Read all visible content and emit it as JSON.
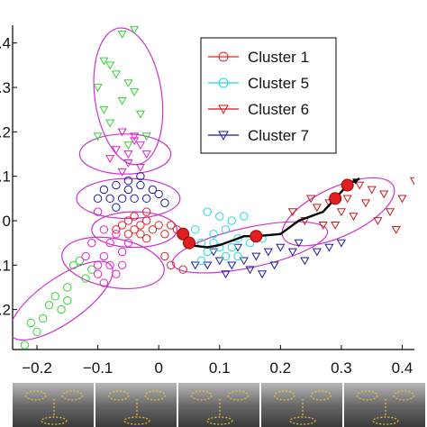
{
  "chart_data": {
    "type": "scatter",
    "title": "",
    "xlabel": "",
    "ylabel": "",
    "xlim": [
      -0.24,
      0.42
    ],
    "ylim": [
      -0.29,
      0.44
    ],
    "x_ticks": [
      -0.2,
      -0.1,
      0,
      0.1,
      0.2,
      0.3,
      0.4
    ],
    "x_tick_labels": [
      "−0.2",
      "−0.1",
      "0",
      "0.1",
      "0.2",
      "0.3",
      "0.4"
    ],
    "y_ticks": [
      0.4,
      0.3,
      0.2,
      0.1,
      0,
      -0.1,
      -0.2
    ],
    "y_tick_labels": [
      ".4",
      ".3",
      ".2",
      ".1",
      "0",
      ".1",
      ".2"
    ],
    "grid": false,
    "legend_position": "top-right",
    "legend": [
      {
        "label": "Cluster 1",
        "color": "#e02020",
        "marker": "circle"
      },
      {
        "label": "Cluster 5",
        "color": "#20d8e8",
        "marker": "circle"
      },
      {
        "label": "Cluster 6",
        "color": "#c81818",
        "marker": "triangle-down"
      },
      {
        "label": "Cluster 7",
        "color": "#1a1aa8",
        "marker": "triangle-down"
      }
    ],
    "colors": {
      "ellipse": "#cc33cc",
      "green": "#2fd62f",
      "magenta": "#e020d0",
      "red": "#e02020",
      "cyan": "#20d8e8",
      "darkred": "#c81818",
      "blue": "#1a1aa8",
      "path": "#000000"
    },
    "ellipses": [
      {
        "cx": -0.05,
        "cy": 0.28,
        "rx": 0.055,
        "ry": 0.155,
        "angle": 8
      },
      {
        "cx": -0.055,
        "cy": 0.15,
        "rx": 0.075,
        "ry": 0.045,
        "angle": 0
      },
      {
        "cx": -0.05,
        "cy": 0.05,
        "rx": 0.085,
        "ry": 0.045,
        "angle": 0
      },
      {
        "cx": -0.04,
        "cy": -0.02,
        "rx": 0.07,
        "ry": 0.04,
        "angle": 0
      },
      {
        "cx": -0.075,
        "cy": -0.095,
        "rx": 0.085,
        "ry": 0.055,
        "angle": -10
      },
      {
        "cx": -0.16,
        "cy": -0.18,
        "rx": 0.1,
        "ry": 0.05,
        "angle": 35
      },
      {
        "cx": 0.15,
        "cy": -0.06,
        "rx": 0.13,
        "ry": 0.045,
        "angle": 12
      },
      {
        "cx": 0.295,
        "cy": 0.02,
        "rx": 0.1,
        "ry": 0.055,
        "angle": 25
      }
    ],
    "path": [
      [
        0.04,
        -0.03
      ],
      [
        0.05,
        -0.055
      ],
      [
        0.08,
        -0.06
      ],
      [
        0.1,
        -0.055
      ],
      [
        0.12,
        -0.045
      ],
      [
        0.14,
        -0.035
      ],
      [
        0.16,
        -0.035
      ],
      [
        0.2,
        -0.03
      ],
      [
        0.23,
        0.0
      ],
      [
        0.27,
        0.02
      ],
      [
        0.29,
        0.05
      ],
      [
        0.31,
        0.08
      ],
      [
        0.33,
        0.095
      ]
    ],
    "path_nodes": [
      [
        0.04,
        -0.03
      ],
      [
        0.05,
        -0.05
      ],
      [
        0.16,
        -0.035
      ],
      [
        0.29,
        0.05
      ],
      [
        0.31,
        0.08
      ]
    ],
    "series": [
      {
        "key": "green",
        "marker": "triangle-down",
        "points": [
          [
            -0.06,
            0.42
          ],
          [
            -0.04,
            0.43
          ],
          [
            -0.09,
            0.36
          ],
          [
            -0.07,
            0.33
          ],
          [
            -0.08,
            0.35
          ],
          [
            -0.05,
            0.31
          ],
          [
            -0.1,
            0.3
          ],
          [
            -0.09,
            0.25
          ],
          [
            -0.06,
            0.27
          ],
          [
            -0.04,
            0.29
          ],
          [
            -0.08,
            0.22
          ],
          [
            -0.06,
            0.2
          ],
          [
            -0.03,
            0.24
          ],
          [
            -0.1,
            0.19
          ],
          [
            -0.05,
            0.17
          ],
          [
            -0.02,
            0.19
          ]
        ]
      },
      {
        "key": "green",
        "marker": "circle",
        "points": [
          [
            -0.14,
            -0.1
          ],
          [
            -0.12,
            -0.13
          ],
          [
            -0.15,
            -0.15
          ],
          [
            -0.17,
            -0.17
          ],
          [
            -0.16,
            -0.2
          ],
          [
            -0.19,
            -0.22
          ],
          [
            -0.2,
            -0.25
          ],
          [
            -0.22,
            -0.28
          ],
          [
            -0.13,
            -0.09
          ],
          [
            -0.11,
            -0.11
          ],
          [
            -0.18,
            -0.19
          ],
          [
            -0.21,
            -0.23
          ],
          [
            -0.15,
            -0.18
          ]
        ]
      },
      {
        "key": "magenta",
        "marker": "triangle-down",
        "points": [
          [
            -0.06,
            0.2
          ],
          [
            -0.04,
            0.18
          ],
          [
            -0.03,
            0.17
          ],
          [
            -0.05,
            0.15
          ],
          [
            -0.07,
            0.16
          ],
          [
            -0.02,
            0.15
          ],
          [
            -0.05,
            0.13
          ],
          [
            -0.08,
            0.14
          ],
          [
            -0.03,
            0.12
          ],
          [
            -0.04,
            0.19
          ],
          [
            -0.06,
            0.11
          ]
        ]
      },
      {
        "key": "magenta",
        "marker": "circle",
        "points": [
          [
            -0.1,
            0.02
          ],
          [
            -0.09,
            -0.02
          ],
          [
            -0.08,
            -0.05
          ],
          [
            -0.07,
            -0.03
          ],
          [
            -0.06,
            -0.07
          ],
          [
            -0.09,
            -0.08
          ],
          [
            -0.08,
            -0.1
          ],
          [
            -0.1,
            -0.1
          ],
          [
            -0.07,
            -0.12
          ],
          [
            -0.09,
            -0.14
          ],
          [
            -0.12,
            -0.08
          ],
          [
            -0.11,
            -0.05
          ],
          [
            -0.05,
            -0.05
          ],
          [
            -0.06,
            -0.1
          ],
          [
            -0.1,
            -0.12
          ]
        ]
      },
      {
        "key": "blue",
        "marker": "circle",
        "points": [
          [
            -0.09,
            0.07
          ],
          [
            -0.07,
            0.08
          ],
          [
            -0.05,
            0.07
          ],
          [
            -0.03,
            0.08
          ],
          [
            -0.01,
            0.07
          ],
          [
            0.0,
            0.06
          ],
          [
            -0.08,
            0.05
          ],
          [
            -0.06,
            0.05
          ],
          [
            -0.04,
            0.05
          ],
          [
            -0.02,
            0.05
          ],
          [
            -0.05,
            0.09
          ],
          [
            -0.03,
            0.1
          ],
          [
            -0.07,
            0.03
          ],
          [
            0.01,
            0.04
          ],
          [
            -0.1,
            0.05
          ]
        ]
      },
      {
        "key": "blue",
        "marker": "triangle-down",
        "points": [
          [
            0.08,
            -0.1
          ],
          [
            0.1,
            -0.09
          ],
          [
            0.12,
            -0.1
          ],
          [
            0.14,
            -0.09
          ],
          [
            0.16,
            -0.08
          ],
          [
            0.18,
            -0.07
          ],
          [
            0.2,
            -0.06
          ],
          [
            0.22,
            -0.07
          ],
          [
            0.24,
            -0.09
          ],
          [
            0.26,
            -0.07
          ],
          [
            0.28,
            -0.06
          ],
          [
            0.3,
            -0.05
          ],
          [
            0.19,
            -0.1
          ],
          [
            0.15,
            -0.11
          ],
          [
            0.09,
            -0.07
          ],
          [
            0.13,
            -0.06
          ],
          [
            0.11,
            -0.12
          ],
          [
            0.06,
            -0.1
          ],
          [
            0.17,
            -0.12
          ],
          [
            0.23,
            -0.05
          ]
        ]
      },
      {
        "key": "red",
        "marker": "circle",
        "points": [
          [
            -0.06,
            -0.01
          ],
          [
            -0.05,
            0.0
          ],
          [
            -0.04,
            -0.02
          ],
          [
            -0.03,
            -0.01
          ],
          [
            -0.02,
            0.0
          ],
          [
            -0.01,
            -0.02
          ],
          [
            0.0,
            -0.01
          ],
          [
            -0.05,
            -0.03
          ],
          [
            -0.03,
            -0.03
          ],
          [
            -0.02,
            -0.04
          ],
          [
            0.01,
            -0.03
          ],
          [
            -0.04,
            0.01
          ],
          [
            -0.02,
            0.02
          ],
          [
            0.02,
            -0.01
          ],
          [
            0.03,
            -0.02
          ],
          [
            -0.07,
            -0.02
          ],
          [
            0.02,
            -0.1
          ],
          [
            0.04,
            -0.11
          ],
          [
            0.01,
            -0.08
          ]
        ]
      },
      {
        "key": "cyan",
        "marker": "circle",
        "points": [
          [
            0.06,
            -0.02
          ],
          [
            0.07,
            -0.05
          ],
          [
            0.08,
            -0.07
          ],
          [
            0.09,
            -0.03
          ],
          [
            0.1,
            -0.06
          ],
          [
            0.11,
            -0.02
          ],
          [
            0.12,
            -0.06
          ],
          [
            0.13,
            -0.04
          ],
          [
            0.08,
            0.02
          ],
          [
            0.1,
            0.01
          ],
          [
            0.12,
            0.0
          ],
          [
            0.14,
            0.01
          ],
          [
            0.11,
            -0.08
          ],
          [
            0.07,
            -0.09
          ],
          [
            0.13,
            -0.08
          ],
          [
            0.15,
            -0.05
          ],
          [
            0.17,
            -0.04
          ],
          [
            0.09,
            -0.05
          ]
        ]
      },
      {
        "key": "darkred",
        "marker": "triangle-down",
        "points": [
          [
            0.22,
            0.02
          ],
          [
            0.24,
            0.0
          ],
          [
            0.26,
            0.03
          ],
          [
            0.27,
            -0.01
          ],
          [
            0.28,
            0.04
          ],
          [
            0.3,
            0.02
          ],
          [
            0.31,
            0.05
          ],
          [
            0.32,
            0.01
          ],
          [
            0.34,
            0.04
          ],
          [
            0.35,
            0.07
          ],
          [
            0.36,
            0.0
          ],
          [
            0.33,
            0.08
          ],
          [
            0.38,
            0.02
          ],
          [
            0.4,
            0.05
          ],
          [
            0.42,
            0.09
          ],
          [
            0.37,
            0.06
          ],
          [
            0.29,
            -0.01
          ],
          [
            0.25,
            0.05
          ],
          [
            0.39,
            -0.02
          ]
        ]
      }
    ],
    "thumbnail_strip": {
      "panels": 5
    }
  }
}
